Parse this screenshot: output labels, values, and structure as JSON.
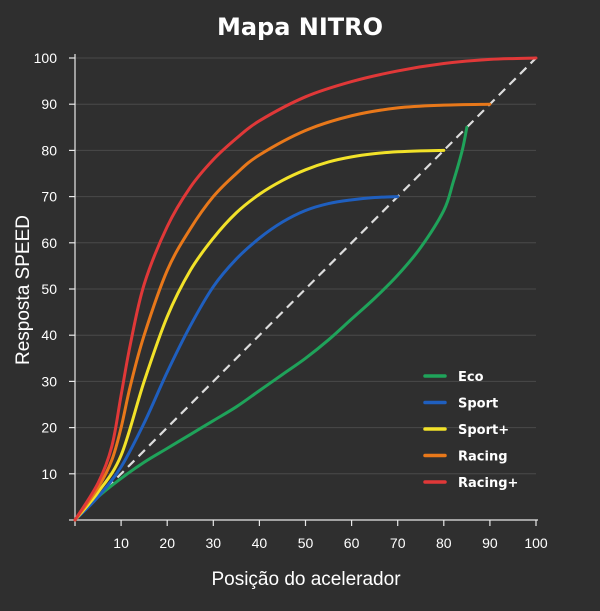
{
  "chart_data": {
    "type": "line",
    "title": "Mapa NITRO",
    "xlabel": "Posição do acelerador",
    "ylabel": "Resposta SPEED",
    "xlim": [
      0,
      100
    ],
    "ylim": [
      0,
      100
    ],
    "xticks": [
      "10",
      "20",
      "30",
      "40",
      "50",
      "60",
      "70",
      "80",
      "90",
      "100"
    ],
    "yticks": [
      "10",
      "20",
      "30",
      "40",
      "50",
      "60",
      "70",
      "80",
      "90",
      "100"
    ],
    "grid": true,
    "legend_position": "bottom-right",
    "reference_line": {
      "style": "dashed",
      "color": "#dddddd",
      "x": [
        0,
        100
      ],
      "y": [
        0,
        100
      ]
    },
    "series": [
      {
        "name": "Eco",
        "color": "#1fa35a",
        "x": [
          0,
          5,
          10,
          15,
          20,
          25,
          30,
          35,
          40,
          45,
          50,
          55,
          60,
          65,
          70,
          75,
          80,
          82,
          84,
          85
        ],
        "y": [
          0,
          5,
          9,
          12.5,
          15.5,
          18.5,
          21.5,
          24.5,
          28,
          31.5,
          35,
          39,
          43.5,
          48,
          53,
          59,
          67,
          73,
          80,
          85
        ]
      },
      {
        "name": "Sport",
        "color": "#1f5fbf",
        "x": [
          0,
          5,
          10,
          15,
          20,
          25,
          30,
          35,
          40,
          45,
          50,
          55,
          60,
          65,
          70
        ],
        "y": [
          0,
          5,
          11.5,
          21,
          32,
          42,
          50.5,
          56.5,
          61,
          64.5,
          67,
          68.5,
          69.3,
          69.8,
          70
        ]
      },
      {
        "name": "Sport+",
        "color": "#f2e229",
        "x": [
          0,
          5,
          10,
          15,
          20,
          25,
          30,
          35,
          40,
          45,
          50,
          55,
          60,
          65,
          70,
          75,
          80
        ],
        "y": [
          0,
          6,
          14,
          30,
          44,
          54,
          61,
          66.5,
          70.5,
          73.5,
          75.8,
          77.5,
          78.6,
          79.3,
          79.7,
          79.9,
          80
        ]
      },
      {
        "name": "Racing",
        "color": "#e8781a",
        "x": [
          0,
          5,
          8,
          10,
          12,
          15,
          20,
          25,
          30,
          35,
          40,
          50,
          60,
          70,
          80,
          90
        ],
        "y": [
          0,
          7,
          13,
          20,
          29,
          40,
          54,
          63,
          70,
          75,
          79,
          84.3,
          87.5,
          89.2,
          89.8,
          90
        ]
      },
      {
        "name": "Racing+",
        "color": "#e03838",
        "x": [
          0,
          5,
          8,
          10,
          12,
          15,
          20,
          25,
          30,
          35,
          40,
          50,
          60,
          70,
          80,
          90,
          100
        ],
        "y": [
          0,
          8,
          16,
          27,
          38,
          51,
          63.5,
          72,
          78,
          82.6,
          86.4,
          91.6,
          94.9,
          97.2,
          98.8,
          99.7,
          100
        ]
      }
    ]
  }
}
